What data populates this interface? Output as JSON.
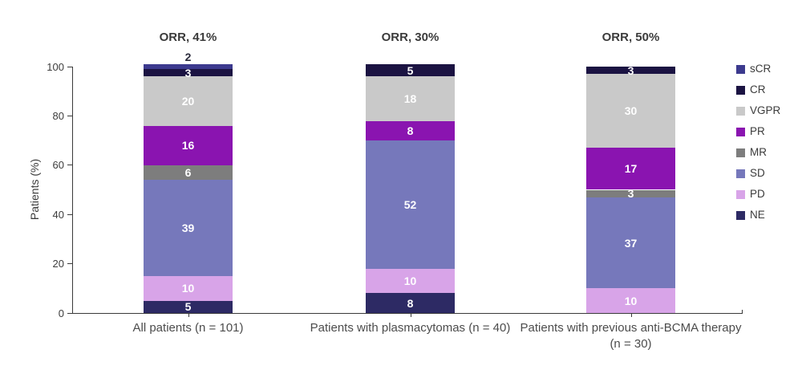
{
  "chart_data": {
    "type": "bar",
    "stacked": true,
    "ylabel": "Patients (%)",
    "ylim": [
      0,
      100
    ],
    "yticks": [
      0,
      20,
      40,
      60,
      80,
      100
    ],
    "grid": false,
    "legend_position": "right",
    "categories": [
      "All patients (n = 101)",
      "Patients with plasmacytomas (n = 40)",
      "Patients with previous anti-BCMA therapy\n(n = 30)"
    ],
    "orr_labels": [
      "ORR, 41%",
      "ORR, 30%",
      "ORR, 50%"
    ],
    "stack_order_bottom_to_top": [
      "NE",
      "PD",
      "SD",
      "MR",
      "PR",
      "VGPR",
      "CR",
      "sCR"
    ],
    "series": [
      {
        "name": "sCR",
        "color": "#3c3a8e",
        "values": [
          2,
          0,
          0
        ]
      },
      {
        "name": "CR",
        "color": "#1b1342",
        "values": [
          3,
          5,
          3
        ]
      },
      {
        "name": "VGPR",
        "color": "#c9c9c9",
        "values": [
          20,
          18,
          30
        ]
      },
      {
        "name": "PR",
        "color": "#8a14b0",
        "values": [
          16,
          8,
          17
        ]
      },
      {
        "name": "MR",
        "color": "#7d7d7d",
        "values": [
          6,
          0,
          3
        ]
      },
      {
        "name": "SD",
        "color": "#7678bb",
        "values": [
          39,
          52,
          37
        ]
      },
      {
        "name": "PD",
        "color": "#d8a4e8",
        "values": [
          10,
          10,
          10
        ]
      },
      {
        "name": "NE",
        "color": "#2d2a64",
        "values": [
          5,
          8,
          0
        ]
      }
    ]
  }
}
